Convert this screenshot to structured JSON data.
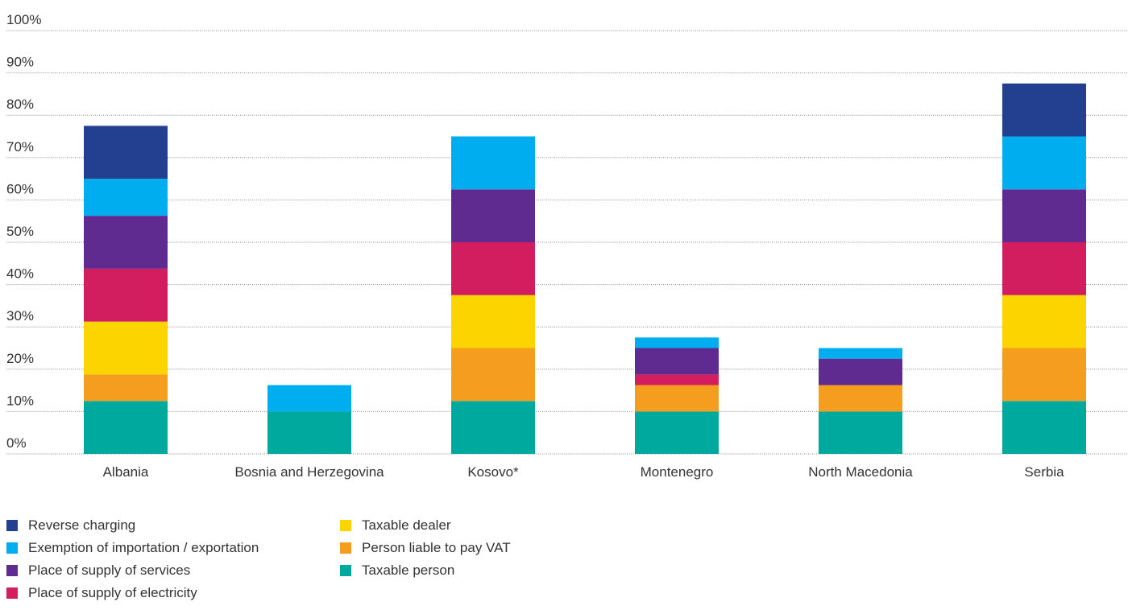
{
  "chart_data": {
    "type": "bar",
    "stacked": true,
    "categories": [
      "Albania",
      "Bosnia and Herzegovina",
      "Kosovo*",
      "Montenegro",
      "North Macedonia",
      "Serbia"
    ],
    "yticks": [
      "0%",
      "10%",
      "20%",
      "30%",
      "40%",
      "50%",
      "60%",
      "70%",
      "80%",
      "90%",
      "100%"
    ],
    "ylim": [
      0,
      100
    ],
    "grid": true,
    "legend_position": "bottom-left",
    "series": [
      {
        "name": "Taxable person",
        "color": "#00a99d",
        "values": [
          12.5,
          10,
          12.5,
          10,
          10,
          12.5
        ]
      },
      {
        "name": "Person liable to pay VAT",
        "color": "#f59d1f",
        "values": [
          6.25,
          0,
          12.5,
          6.25,
          6.25,
          12.5
        ]
      },
      {
        "name": "Taxable dealer",
        "color": "#fcd400",
        "values": [
          12.5,
          0,
          12.5,
          0,
          0,
          12.5
        ]
      },
      {
        "name": "Place of supply of electricity",
        "color": "#d21e5f",
        "values": [
          12.5,
          0,
          12.5,
          2.5,
          0,
          12.5
        ]
      },
      {
        "name": "Place of supply of services",
        "color": "#5f2b91",
        "values": [
          12.5,
          0,
          12.5,
          6.25,
          6.25,
          12.5
        ]
      },
      {
        "name": "Exemption of importation / exportation",
        "color": "#00adee",
        "values": [
          8.75,
          6.25,
          12.5,
          2.5,
          2.5,
          12.5
        ]
      },
      {
        "name": "Reverse charging",
        "color": "#233f8f",
        "values": [
          12.5,
          0,
          0,
          0,
          0,
          12.5
        ]
      }
    ],
    "legend_order": [
      "Reverse charging",
      "Exemption of importation / exportation",
      "Place of supply of services",
      "Place of supply of electricity",
      "Taxable dealer",
      "Person liable to pay VAT",
      "Taxable person"
    ]
  }
}
